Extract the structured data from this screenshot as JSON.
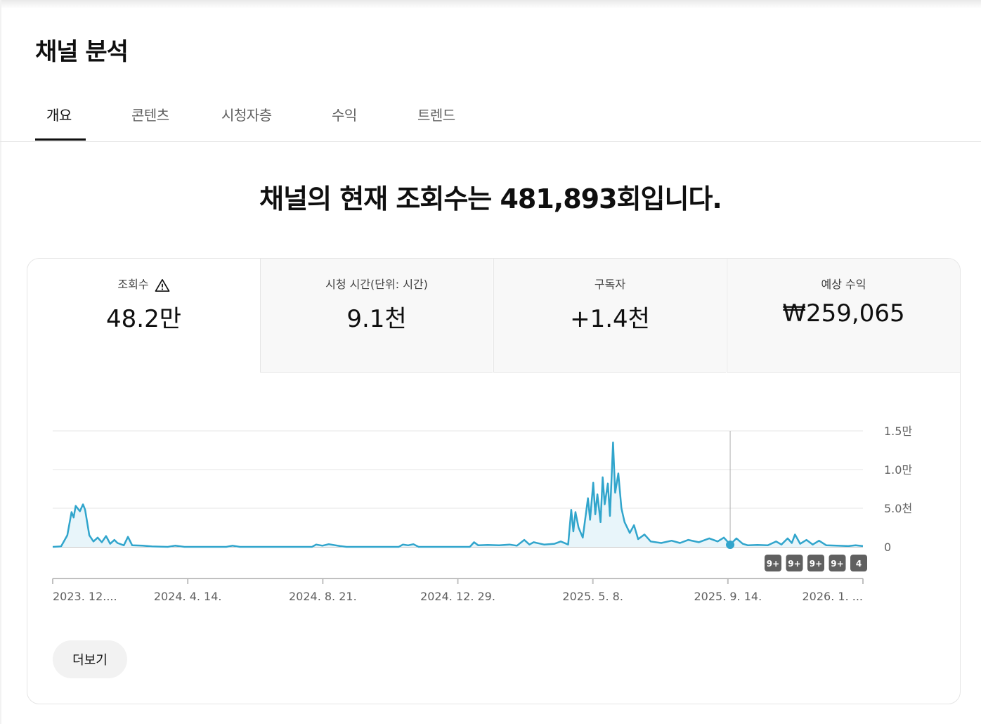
{
  "page": {
    "title": "채널 분석"
  },
  "tabs": [
    {
      "label": "개요",
      "active": true
    },
    {
      "label": "콘텐츠",
      "active": false
    },
    {
      "label": "시청자층",
      "active": false
    },
    {
      "label": "수익",
      "active": false
    },
    {
      "label": "트렌드",
      "active": false
    }
  ],
  "headline": "채널의 현재 조회수는 481,893회입니다.",
  "metrics": [
    {
      "label": "조회수",
      "value": "48.2만",
      "icon": "warning-icon",
      "selected": true
    },
    {
      "label": "시청 시간(단위: 시간)",
      "value": "9.1천",
      "selected": false
    },
    {
      "label": "구독자",
      "value": "+1.4천",
      "selected": false
    },
    {
      "label": "예상 수익",
      "value": "₩259,065",
      "selected": false
    }
  ],
  "colors": {
    "line": "#31a5cc",
    "fill": "#e8f5fa",
    "grid": "#e5e5e5",
    "badge": "#606060"
  },
  "chart_data": {
    "type": "area",
    "y_tick_labels": [
      "0",
      "5.0천",
      "1.0만",
      "1.5만"
    ],
    "y_tick_values": [
      0,
      5000,
      10000,
      15000
    ],
    "ylim": [
      0,
      15000
    ],
    "x_tick_labels": [
      "2023. 12....",
      "2024. 4. 14.",
      "2024. 8. 21.",
      "2024. 12. 29.",
      "2025. 5. 8.",
      "2025. 9. 14.",
      "2026. 1. ..."
    ],
    "x_start": "2023-12-06",
    "x_end": "2026-01-19",
    "marker_date": "2025-09-14",
    "badges": [
      "9+",
      "9+",
      "9+",
      "9+",
      "4"
    ],
    "series": [
      {
        "points": [
          [
            "2023-12-06",
            0
          ],
          [
            "2023-12-14",
            50
          ],
          [
            "2023-12-20",
            1500
          ],
          [
            "2023-12-24",
            4500
          ],
          [
            "2023-12-26",
            3800
          ],
          [
            "2023-12-28",
            5300
          ],
          [
            "2024-01-01",
            4600
          ],
          [
            "2024-01-04",
            5500
          ],
          [
            "2024-01-06",
            4800
          ],
          [
            "2024-01-10",
            1500
          ],
          [
            "2024-01-14",
            700
          ],
          [
            "2024-01-18",
            1200
          ],
          [
            "2024-01-22",
            600
          ],
          [
            "2024-01-26",
            1400
          ],
          [
            "2024-01-30",
            400
          ],
          [
            "2024-02-03",
            900
          ],
          [
            "2024-02-06",
            500
          ],
          [
            "2024-02-12",
            200
          ],
          [
            "2024-02-16",
            1300
          ],
          [
            "2024-02-20",
            200
          ],
          [
            "2024-03-01",
            150
          ],
          [
            "2024-03-10",
            50
          ],
          [
            "2024-03-25",
            0
          ],
          [
            "2024-04-01",
            150
          ],
          [
            "2024-04-10",
            0
          ],
          [
            "2024-05-20",
            0
          ],
          [
            "2024-05-26",
            150
          ],
          [
            "2024-06-02",
            0
          ],
          [
            "2024-08-10",
            0
          ],
          [
            "2024-08-14",
            300
          ],
          [
            "2024-08-20",
            150
          ],
          [
            "2024-08-26",
            350
          ],
          [
            "2024-09-06",
            100
          ],
          [
            "2024-09-12",
            0
          ],
          [
            "2024-11-01",
            0
          ],
          [
            "2024-11-05",
            300
          ],
          [
            "2024-11-10",
            200
          ],
          [
            "2024-11-15",
            350
          ],
          [
            "2024-11-20",
            0
          ],
          [
            "2025-01-08",
            0
          ],
          [
            "2025-01-12",
            600
          ],
          [
            "2025-01-16",
            200
          ],
          [
            "2025-01-25",
            250
          ],
          [
            "2025-02-05",
            200
          ],
          [
            "2025-02-15",
            300
          ],
          [
            "2025-02-22",
            150
          ],
          [
            "2025-03-01",
            900
          ],
          [
            "2025-03-06",
            300
          ],
          [
            "2025-03-10",
            600
          ],
          [
            "2025-03-20",
            300
          ],
          [
            "2025-03-30",
            400
          ],
          [
            "2025-04-05",
            700
          ],
          [
            "2025-04-12",
            300
          ],
          [
            "2025-04-15",
            4800
          ],
          [
            "2025-04-17",
            2000
          ],
          [
            "2025-04-19",
            4500
          ],
          [
            "2025-04-22",
            2500
          ],
          [
            "2025-04-26",
            1200
          ],
          [
            "2025-05-01",
            6300
          ],
          [
            "2025-05-03",
            3500
          ],
          [
            "2025-05-06",
            8300
          ],
          [
            "2025-05-08",
            4200
          ],
          [
            "2025-05-10",
            6800
          ],
          [
            "2025-05-13",
            3200
          ],
          [
            "2025-05-15",
            9000
          ],
          [
            "2025-05-17",
            5500
          ],
          [
            "2025-05-20",
            8200
          ],
          [
            "2025-05-22",
            4000
          ],
          [
            "2025-05-25",
            13500
          ],
          [
            "2025-05-27",
            7000
          ],
          [
            "2025-05-30",
            9500
          ],
          [
            "2025-06-02",
            5000
          ],
          [
            "2025-06-05",
            3200
          ],
          [
            "2025-06-10",
            1800
          ],
          [
            "2025-06-14",
            2800
          ],
          [
            "2025-06-18",
            1000
          ],
          [
            "2025-06-24",
            1600
          ],
          [
            "2025-06-30",
            700
          ],
          [
            "2025-07-10",
            500
          ],
          [
            "2025-07-20",
            800
          ],
          [
            "2025-07-28",
            500
          ],
          [
            "2025-08-05",
            900
          ],
          [
            "2025-08-15",
            600
          ],
          [
            "2025-08-25",
            1100
          ],
          [
            "2025-09-02",
            700
          ],
          [
            "2025-09-08",
            1200
          ],
          [
            "2025-09-14",
            300
          ],
          [
            "2025-09-20",
            1100
          ],
          [
            "2025-09-26",
            400
          ],
          [
            "2025-10-01",
            200
          ],
          [
            "2025-10-10",
            250
          ],
          [
            "2025-10-20",
            200
          ],
          [
            "2025-10-28",
            700
          ],
          [
            "2025-11-02",
            300
          ],
          [
            "2025-11-08",
            1100
          ],
          [
            "2025-11-12",
            500
          ],
          [
            "2025-11-15",
            1600
          ],
          [
            "2025-11-20",
            400
          ],
          [
            "2025-11-26",
            900
          ],
          [
            "2025-12-02",
            300
          ],
          [
            "2025-12-08",
            800
          ],
          [
            "2025-12-15",
            200
          ],
          [
            "2025-12-25",
            150
          ],
          [
            "2026-01-05",
            100
          ],
          [
            "2026-01-12",
            200
          ],
          [
            "2026-01-19",
            100
          ]
        ]
      }
    ]
  },
  "more_button": {
    "label": "더보기"
  }
}
